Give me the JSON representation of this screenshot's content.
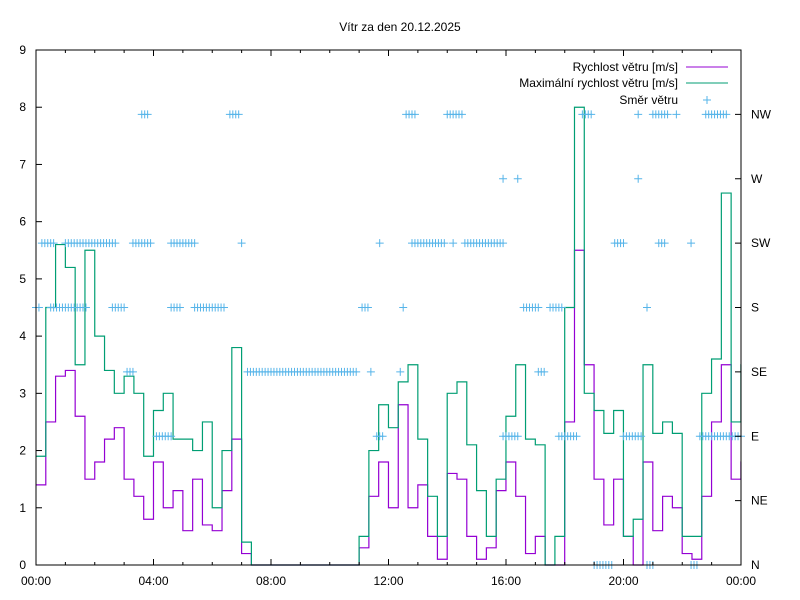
{
  "chart_data": {
    "type": "line",
    "title": "Vítr za den 20.12.2025",
    "xlabel": "",
    "ylabel": "",
    "xlim_hours": [
      0,
      24
    ],
    "ylim": [
      0,
      9
    ],
    "x_tick_labels": [
      "00:00",
      "04:00",
      "08:00",
      "12:00",
      "16:00",
      "20:00",
      "00:00"
    ],
    "y_tick_labels": [
      "0",
      "1",
      "2",
      "3",
      "4",
      "5",
      "6",
      "7",
      "8",
      "9"
    ],
    "y2_tick_labels": [
      "N",
      "NE",
      "E",
      "SE",
      "S",
      "SW",
      "W",
      "NW"
    ],
    "legend_position": "top-right",
    "grid": false,
    "x_step_hours": 0.3333,
    "series": [
      {
        "name": "Rychlost větru [m/s]",
        "color": "#9400d3",
        "style": "steps",
        "values": [
          1.4,
          2.5,
          3.3,
          3.4,
          2.6,
          1.5,
          1.8,
          2.2,
          2.4,
          1.5,
          1.2,
          0.8,
          1.8,
          1.0,
          1.3,
          0.6,
          1.5,
          0.7,
          0.6,
          1.3,
          2.2,
          0.2,
          0,
          0,
          0,
          0,
          0,
          0,
          0,
          0,
          0,
          0,
          0,
          0.3,
          1.2,
          1.8,
          1.0,
          2.8,
          1.0,
          1.4,
          0.5,
          0.1,
          1.6,
          1.5,
          0.5,
          0.1,
          0.3,
          1.3,
          1.8,
          1.2,
          0.2,
          0.5,
          0,
          0,
          2.5,
          5.5,
          3.5,
          1.5,
          0.7,
          1.5,
          0.5,
          0,
          1.8,
          0.6,
          1.2,
          1.0,
          0.2,
          0.1,
          1.2,
          2.5,
          3.5,
          1.5,
          1.8
        ]
      },
      {
        "name": "Maximální rychlost větru [m/s]",
        "color": "#009e73",
        "style": "steps",
        "values": [
          1.9,
          4.5,
          5.6,
          5.2,
          3.5,
          5.5,
          4.0,
          3.4,
          3.0,
          3.3,
          3.0,
          1.9,
          2.7,
          3.0,
          2.2,
          2.2,
          2.0,
          2.5,
          1.0,
          2.0,
          3.8,
          0.4,
          0,
          0,
          0,
          0,
          0,
          0,
          0,
          0,
          0,
          0,
          0,
          0.5,
          2.0,
          2.8,
          2.4,
          3.2,
          3.5,
          2.2,
          1.2,
          0.5,
          3.0,
          3.2,
          2.1,
          1.3,
          0.5,
          1.5,
          2.6,
          3.5,
          2.2,
          2.1,
          0,
          0.5,
          4.5,
          8.0,
          3.0,
          2.7,
          2.3,
          2.7,
          0.5,
          0.8,
          3.5,
          2.3,
          2.5,
          2.3,
          0.5,
          0.5,
          3.0,
          3.6,
          6.5,
          2.5,
          3.5
        ]
      },
      {
        "name": "Směr větru",
        "color": "#56b4e9",
        "style": "points",
        "axis": "y2",
        "point_step_hours": 0.1,
        "ranges_hours_direction": [
          [
            3.6,
            3.8,
            "NW"
          ],
          [
            6.6,
            6.9,
            "NW"
          ],
          [
            12.6,
            12.9,
            "NW"
          ],
          [
            14.0,
            14.5,
            "NW"
          ],
          [
            18.6,
            18.9,
            "NW"
          ],
          [
            20.5,
            20.5,
            "NW"
          ],
          [
            21.0,
            21.5,
            "NW"
          ],
          [
            21.8,
            21.8,
            "NW"
          ],
          [
            22.8,
            23.5,
            "NW"
          ],
          [
            15.9,
            15.9,
            "W"
          ],
          [
            16.4,
            16.4,
            "W"
          ],
          [
            20.5,
            20.5,
            "W"
          ],
          [
            0.2,
            0.6,
            "SW"
          ],
          [
            1.0,
            2.7,
            "SW"
          ],
          [
            3.3,
            3.9,
            "SW"
          ],
          [
            4.6,
            5.4,
            "SW"
          ],
          [
            7.0,
            7.0,
            "SW"
          ],
          [
            11.7,
            11.7,
            "SW"
          ],
          [
            12.8,
            13.9,
            "SW"
          ],
          [
            14.2,
            14.2,
            "SW"
          ],
          [
            14.6,
            15.9,
            "SW"
          ],
          [
            19.7,
            20.0,
            "SW"
          ],
          [
            21.2,
            21.4,
            "SW"
          ],
          [
            22.3,
            22.3,
            "SW"
          ],
          [
            0.0,
            0.1,
            "S"
          ],
          [
            0.5,
            1.7,
            "S"
          ],
          [
            2.6,
            3.0,
            "S"
          ],
          [
            4.6,
            4.9,
            "S"
          ],
          [
            5.4,
            6.4,
            "S"
          ],
          [
            11.1,
            11.3,
            "S"
          ],
          [
            12.5,
            12.5,
            "S"
          ],
          [
            16.6,
            17.1,
            "S"
          ],
          [
            17.5,
            17.9,
            "S"
          ],
          [
            20.8,
            20.8,
            "S"
          ],
          [
            3.1,
            3.3,
            "SE"
          ],
          [
            7.2,
            10.9,
            "SE"
          ],
          [
            11.4,
            11.4,
            "SE"
          ],
          [
            12.4,
            12.4,
            "SE"
          ],
          [
            17.1,
            17.3,
            "SE"
          ],
          [
            4.1,
            4.6,
            "E"
          ],
          [
            11.6,
            11.8,
            "E"
          ],
          [
            15.9,
            16.4,
            "E"
          ],
          [
            17.8,
            18.4,
            "E"
          ],
          [
            20.0,
            20.6,
            "E"
          ],
          [
            22.6,
            24.0,
            "E"
          ],
          [
            19.0,
            19.6,
            "N"
          ],
          [
            20.8,
            21.0,
            "N"
          ],
          [
            22.3,
            22.5,
            "N"
          ]
        ]
      }
    ]
  }
}
